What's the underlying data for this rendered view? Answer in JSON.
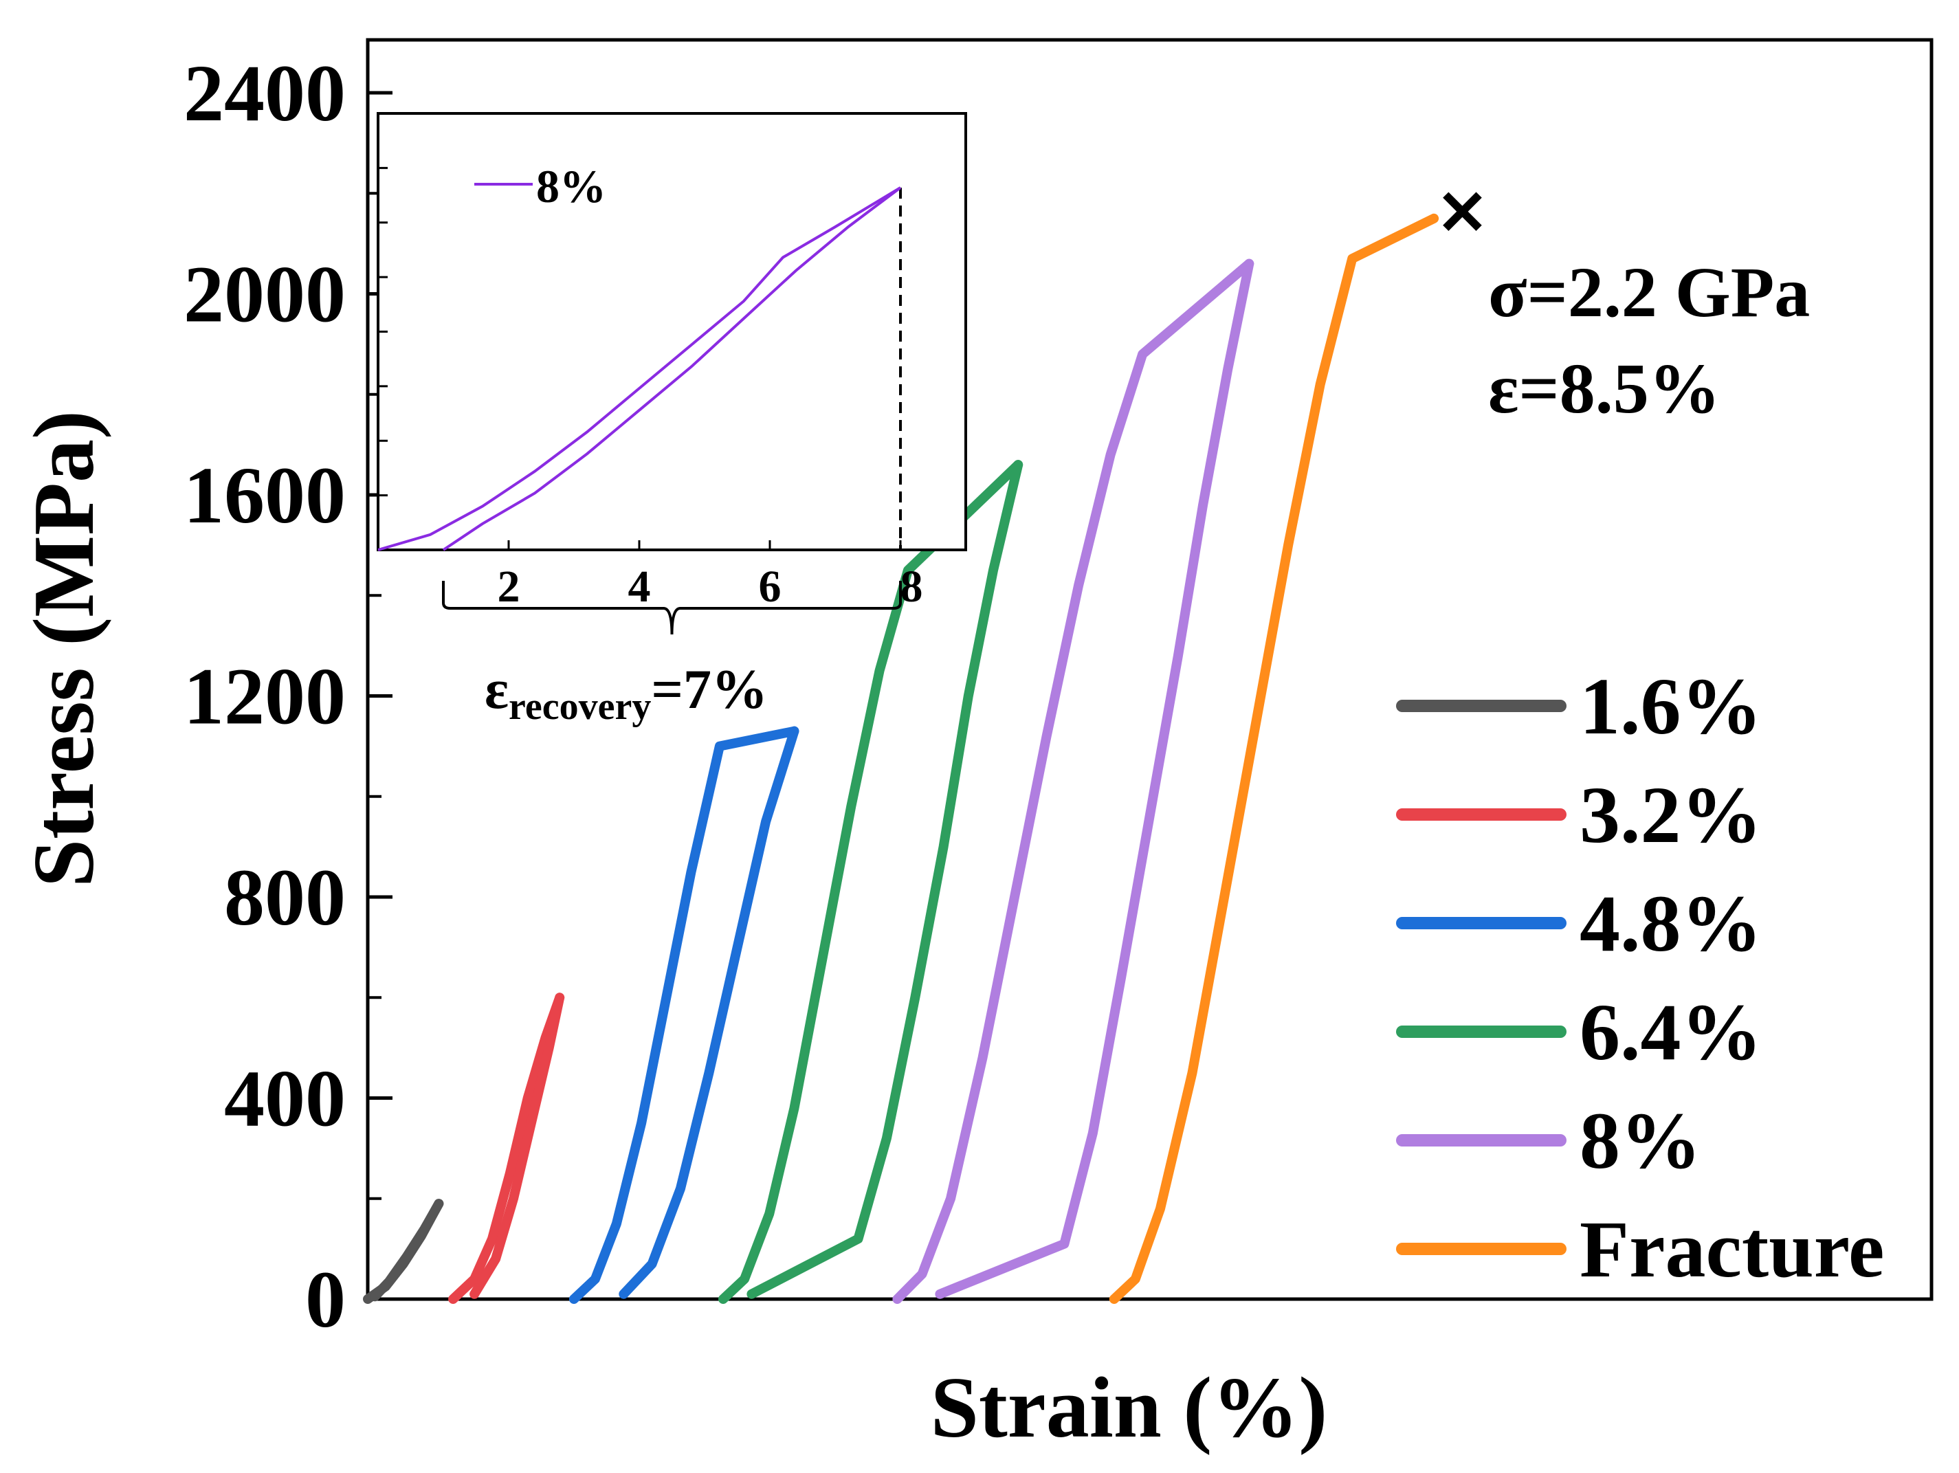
{
  "chart_data": {
    "type": "line",
    "title": "",
    "xlabel": "Strain (%)",
    "ylabel": "Stress (MPa)",
    "xlim": [
      0,
      44
    ],
    "ylim": [
      0,
      2400
    ],
    "ytick_labels": [
      "0",
      "400",
      "800",
      "1200",
      "1600",
      "2000",
      "2400"
    ],
    "yticks": [
      0,
      400,
      800,
      1200,
      1600,
      2000,
      2400
    ],
    "xticks_shown": false,
    "legend_position": "right",
    "series": [
      {
        "name": "1.6%",
        "color": "#555555",
        "loading": [
          [
            0.0,
            0
          ],
          [
            0.5,
            25
          ],
          [
            1.0,
            70
          ],
          [
            1.5,
            125
          ],
          [
            2.0,
            190
          ]
        ],
        "unloading": [
          [
            2.0,
            190
          ],
          [
            1.6,
            140
          ],
          [
            1.1,
            85
          ],
          [
            0.6,
            35
          ],
          [
            0.2,
            5
          ]
        ]
      },
      {
        "name": "3.2%",
        "color": "#e8434a",
        "loading": [
          [
            2.4,
            0
          ],
          [
            3.0,
            40
          ],
          [
            3.5,
            120
          ],
          [
            4.0,
            250
          ],
          [
            4.5,
            400
          ],
          [
            5.0,
            520
          ],
          [
            5.4,
            600
          ]
        ],
        "unloading": [
          [
            5.4,
            600
          ],
          [
            5.1,
            500
          ],
          [
            4.6,
            350
          ],
          [
            4.1,
            200
          ],
          [
            3.6,
            80
          ],
          [
            3.0,
            10
          ]
        ]
      },
      {
        "name": "4.8%",
        "color": "#1d6fd8",
        "loading": [
          [
            5.8,
            0
          ],
          [
            6.4,
            40
          ],
          [
            7.0,
            150
          ],
          [
            7.7,
            350
          ],
          [
            8.4,
            600
          ],
          [
            9.1,
            850
          ],
          [
            9.9,
            1100
          ],
          [
            12.0,
            1130
          ]
        ],
        "unloading": [
          [
            12.0,
            1130
          ],
          [
            11.2,
            950
          ],
          [
            10.4,
            700
          ],
          [
            9.6,
            450
          ],
          [
            8.8,
            220
          ],
          [
            8.0,
            70
          ],
          [
            7.2,
            10
          ]
        ]
      },
      {
        "name": "6.4%",
        "color": "#2e9e5e",
        "loading": [
          [
            10.0,
            0
          ],
          [
            10.6,
            40
          ],
          [
            11.3,
            170
          ],
          [
            12.0,
            380
          ],
          [
            12.8,
            680
          ],
          [
            13.6,
            980
          ],
          [
            14.4,
            1250
          ],
          [
            15.2,
            1450
          ],
          [
            18.3,
            1660
          ]
        ],
        "unloading": [
          [
            18.3,
            1660
          ],
          [
            17.6,
            1450
          ],
          [
            16.9,
            1200
          ],
          [
            16.2,
            900
          ],
          [
            15.4,
            600
          ],
          [
            14.6,
            320
          ],
          [
            13.8,
            120
          ],
          [
            10.8,
            10
          ]
        ]
      },
      {
        "name": "8%",
        "color": "#b07ee0",
        "loading": [
          [
            14.9,
            0
          ],
          [
            15.6,
            50
          ],
          [
            16.4,
            200
          ],
          [
            17.3,
            480
          ],
          [
            18.2,
            800
          ],
          [
            19.1,
            1120
          ],
          [
            20.0,
            1420
          ],
          [
            20.9,
            1680
          ],
          [
            21.8,
            1880
          ],
          [
            24.8,
            2060
          ]
        ],
        "unloading": [
          [
            24.8,
            2060
          ],
          [
            24.2,
            1850
          ],
          [
            23.5,
            1580
          ],
          [
            22.8,
            1280
          ],
          [
            22.0,
            960
          ],
          [
            21.2,
            640
          ],
          [
            20.4,
            330
          ],
          [
            19.6,
            110
          ],
          [
            16.1,
            10
          ]
        ]
      },
      {
        "name": "Fracture",
        "color": "#ff8c1a",
        "loading": [
          [
            21.0,
            0
          ],
          [
            21.6,
            40
          ],
          [
            22.3,
            180
          ],
          [
            23.2,
            450
          ],
          [
            24.1,
            800
          ],
          [
            25.0,
            1150
          ],
          [
            25.9,
            1500
          ],
          [
            26.8,
            1820
          ],
          [
            27.7,
            2070
          ],
          [
            30.0,
            2150
          ]
        ],
        "unloading": []
      }
    ],
    "fracture_marker": {
      "label": "✕",
      "x": 30.8,
      "y": 2160
    },
    "annotations": {
      "stress": "σ=2.2 GPa",
      "strain": "ε=8.5%"
    },
    "inset": {
      "type": "line",
      "series_name": "8%",
      "color": "#8a2be2",
      "xlim": [
        0,
        9
      ],
      "xticks": [
        2,
        4,
        6,
        8
      ],
      "xtick_labels": [
        "2",
        "4",
        "6",
        "8"
      ],
      "dashed_line_at_x": 8,
      "loading": [
        [
          0.0,
          0.0
        ],
        [
          0.8,
          0.035
        ],
        [
          1.6,
          0.1
        ],
        [
          2.4,
          0.18
        ],
        [
          3.2,
          0.27
        ],
        [
          4.0,
          0.37
        ],
        [
          4.8,
          0.47
        ],
        [
          5.6,
          0.57
        ],
        [
          6.2,
          0.67
        ],
        [
          7.0,
          0.74
        ],
        [
          8.0,
          0.83
        ]
      ],
      "unloading": [
        [
          8.0,
          0.83
        ],
        [
          7.2,
          0.74
        ],
        [
          6.4,
          0.64
        ],
        [
          5.6,
          0.53
        ],
        [
          4.8,
          0.42
        ],
        [
          4.0,
          0.32
        ],
        [
          3.2,
          0.22
        ],
        [
          2.4,
          0.13
        ],
        [
          1.6,
          0.06
        ],
        [
          1.0,
          0.0
        ]
      ],
      "recovery_label_main": "ε",
      "recovery_label_sub": "recovery",
      "recovery_label_value": "=7%"
    }
  }
}
